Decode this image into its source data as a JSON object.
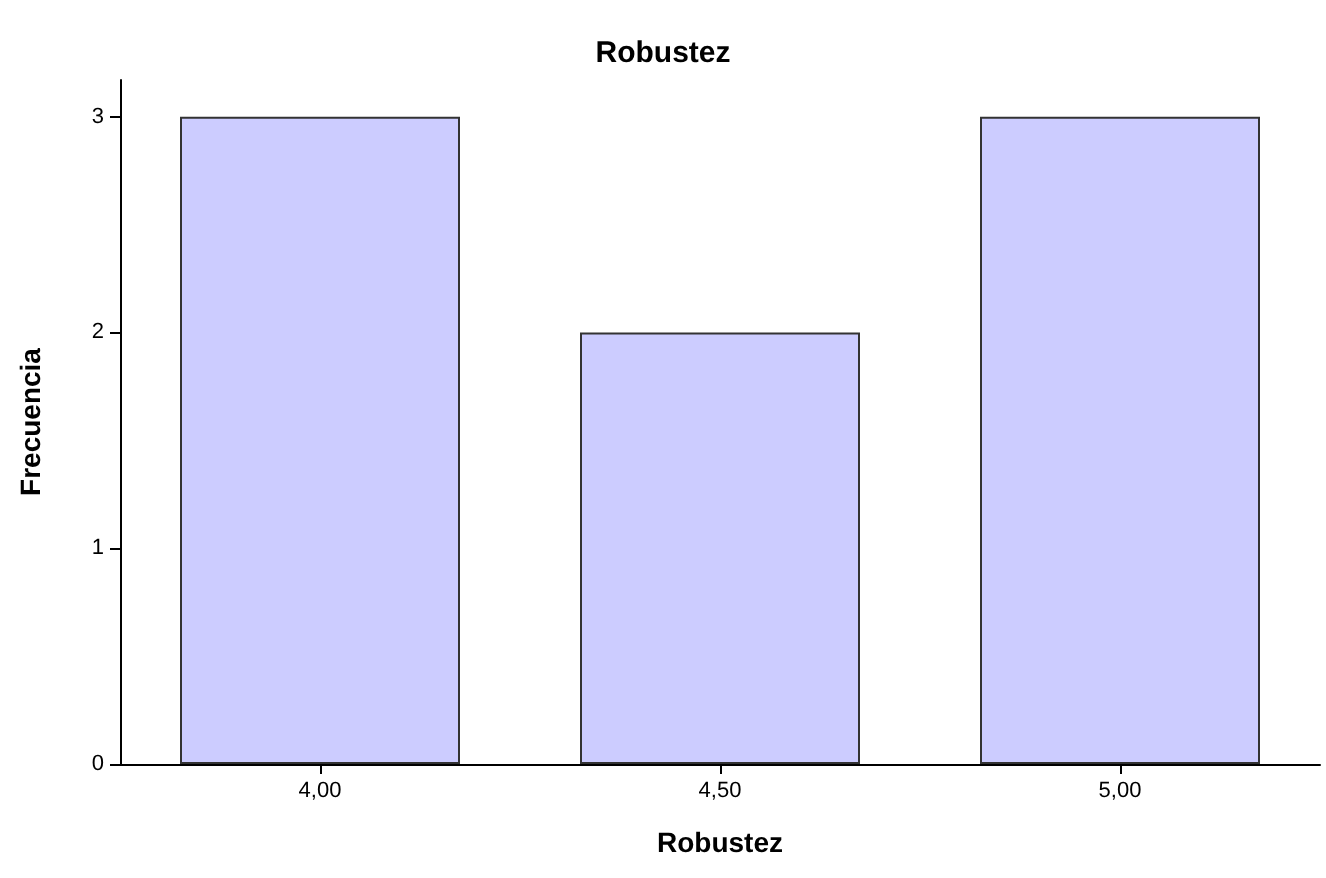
{
  "chart_data": {
    "type": "bar",
    "title": "Robustez",
    "xlabel": "Robustez",
    "ylabel": "Frecuencia",
    "categories": [
      "4,00",
      "4,50",
      "5,00"
    ],
    "values": [
      3,
      2,
      3
    ],
    "color": "#ccccff",
    "ylim": [
      0,
      3.17
    ],
    "yticks": [
      0,
      1,
      2,
      3
    ],
    "grid": false
  }
}
